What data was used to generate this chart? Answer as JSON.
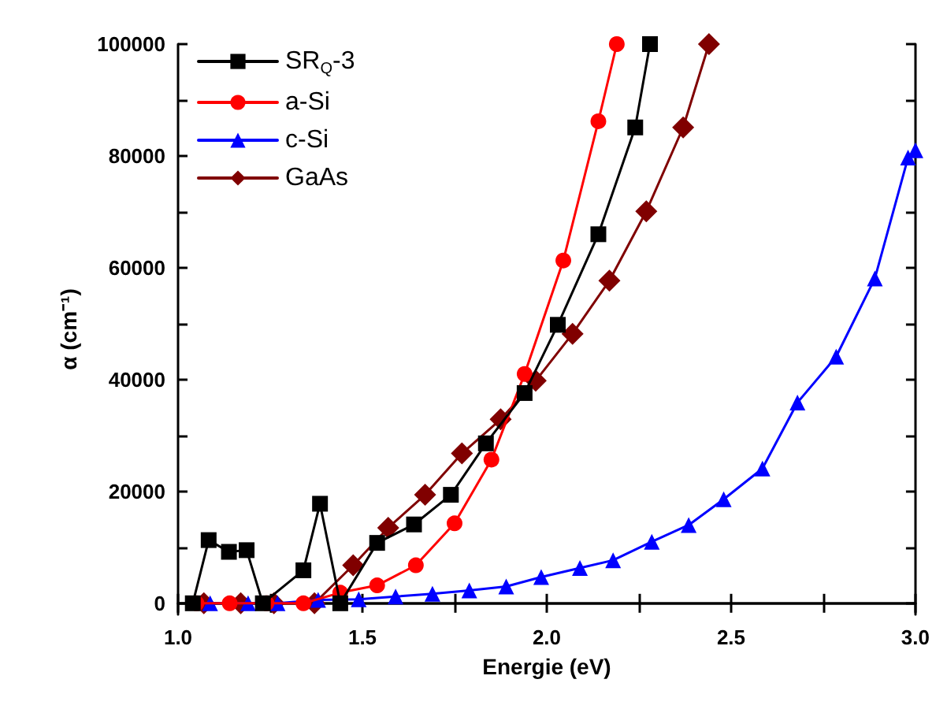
{
  "chart_data": {
    "type": "line",
    "xlabel": "Energie (eV)",
    "ylabel": "α (cm⁻¹)",
    "xlim": [
      1.0,
      3.0
    ],
    "xticks": [
      {
        "value": 1,
        "label": "1.0"
      },
      1.5,
      {
        "value": 2,
        "label": "2.0"
      },
      2.5,
      {
        "value": 3,
        "label": "3.0"
      }
    ],
    "ylim": [
      -2000,
      100000
    ],
    "yticks": [
      0,
      20000,
      40000,
      60000,
      80000,
      100000
    ],
    "grid": false,
    "legend": "top left",
    "line_style": "solid",
    "series": [
      {
        "name": "SR$_{Q}$-3",
        "color": "#000000",
        "marker": "square",
        "x": [
          1.04,
          1.083,
          1.138,
          1.186,
          1.23,
          1.34,
          1.385,
          1.44,
          1.54,
          1.64,
          1.74,
          1.835,
          1.94,
          2.03,
          2.14,
          2.24,
          2.28
        ],
        "values": [
          0,
          11300,
          9200,
          9500,
          0,
          5900,
          17800,
          0,
          10800,
          14100,
          19400,
          28600,
          37600,
          49800,
          66000,
          85100,
          100000
        ]
      },
      {
        "name": "a-Si",
        "color": "#ff0000",
        "marker": "circle",
        "x": [
          1.05,
          1.14,
          1.24,
          1.34,
          1.44,
          1.54,
          1.645,
          1.75,
          1.85,
          1.94,
          2.045,
          2.14,
          2.19
        ],
        "values": [
          0,
          0,
          0,
          0,
          1900,
          3200,
          6800,
          14300,
          25700,
          41000,
          61300,
          86200,
          100000
        ]
      },
      {
        "name": "c-Si",
        "color": "#0000ff",
        "marker": "triangle",
        "x": [
          1.087,
          1.19,
          1.27,
          1.38,
          1.49,
          1.59,
          1.69,
          1.79,
          1.89,
          1.985,
          2.09,
          2.18,
          2.285,
          2.385,
          2.48,
          2.585,
          2.68,
          2.785,
          2.89,
          2.98,
          3.0
        ],
        "values": [
          0,
          0,
          0,
          600,
          700,
          1200,
          1700,
          2300,
          3000,
          4700,
          6300,
          7700,
          11000,
          14000,
          18600,
          24100,
          35900,
          44100,
          58100,
          79700,
          81000
        ]
      },
      {
        "name": "GaAs",
        "color": "#800000",
        "marker": "diamond",
        "x": [
          1.07,
          1.17,
          1.26,
          1.37,
          1.475,
          1.57,
          1.67,
          1.77,
          1.875,
          1.97,
          2.07,
          2.17,
          2.27,
          2.37,
          2.44
        ],
        "values": [
          0,
          0,
          0,
          0,
          6800,
          13500,
          19400,
          26800,
          32900,
          39800,
          48200,
          57700,
          70100,
          85100,
          100000
        ]
      }
    ]
  }
}
